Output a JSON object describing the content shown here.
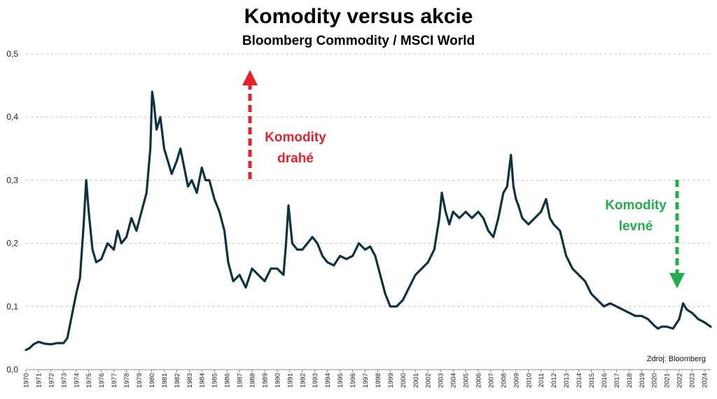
{
  "chart_data": {
    "type": "line",
    "title": "Komodity versus akcie",
    "subtitle": "Bloomberg Commodity / MSCI World",
    "xlabel": "",
    "ylabel": "",
    "ylim": [
      0,
      0.5
    ],
    "yticks": [
      "0,0",
      "0,1",
      "0,2",
      "0,3",
      "0,4",
      "0,5"
    ],
    "xlim": [
      1970,
      2024.5
    ],
    "xticks": [
      "1970",
      "1971",
      "1972",
      "1973",
      "1974",
      "1975",
      "1976",
      "1977",
      "1978",
      "1979",
      "1980",
      "1981",
      "1982",
      "1983",
      "1984",
      "1985",
      "1986",
      "1987",
      "1988",
      "1989",
      "1990",
      "1991",
      "1992",
      "1993",
      "1994",
      "1995",
      "1996",
      "1997",
      "1998",
      "1999",
      "2000",
      "2001",
      "2002",
      "2003",
      "2004",
      "2005",
      "2006",
      "2007",
      "2008",
      "2009",
      "2010",
      "2011",
      "2012",
      "2013",
      "2014",
      "2015",
      "2016",
      "2017",
      "2018",
      "2019",
      "2020",
      "2021",
      "2022",
      "2023",
      "2024"
    ],
    "grid": "horizontal dashed",
    "series": [
      {
        "color": "#0d3340",
        "x": [
          1970.0,
          1970.3,
          1970.6,
          1971.0,
          1971.5,
          1972.0,
          1972.5,
          1973.0,
          1973.3,
          1973.6,
          1974.0,
          1974.3,
          1974.6,
          1974.8,
          1975.0,
          1975.3,
          1975.6,
          1976.0,
          1976.5,
          1977.0,
          1977.3,
          1977.6,
          1978.0,
          1978.4,
          1978.8,
          1979.2,
          1979.6,
          1979.9,
          1980.05,
          1980.2,
          1980.4,
          1980.7,
          1981.0,
          1981.3,
          1981.6,
          1982.0,
          1982.3,
          1982.6,
          1982.9,
          1983.2,
          1983.6,
          1984.0,
          1984.3,
          1984.6,
          1985.0,
          1985.4,
          1985.8,
          1986.1,
          1986.5,
          1987.0,
          1987.5,
          1988.0,
          1988.5,
          1989.0,
          1989.5,
          1990.0,
          1990.5,
          1990.7,
          1990.9,
          1991.2,
          1991.6,
          1992.0,
          1992.4,
          1992.8,
          1993.2,
          1993.6,
          1994.0,
          1994.5,
          1995.0,
          1995.5,
          1996.0,
          1996.5,
          1997.0,
          1997.4,
          1997.8,
          1998.2,
          1998.6,
          1999.0,
          1999.5,
          2000.0,
          2000.5,
          2001.0,
          2001.5,
          2002.0,
          2002.5,
          2002.9,
          2003.1,
          2003.4,
          2003.7,
          2004.0,
          2004.5,
          2005.0,
          2005.5,
          2006.0,
          2006.4,
          2006.8,
          2007.2,
          2007.6,
          2008.0,
          2008.3,
          2008.6,
          2008.8,
          2009.0,
          2009.2,
          2009.5,
          2010.0,
          2010.5,
          2011.0,
          2011.4,
          2011.7,
          2012.0,
          2012.5,
          2013.0,
          2013.5,
          2014.0,
          2014.5,
          2015.0,
          2015.5,
          2016.0,
          2016.5,
          2017.0,
          2017.5,
          2018.0,
          2018.5,
          2019.0,
          2019.5,
          2020.0,
          2020.3,
          2020.6,
          2021.0,
          2021.5,
          2022.0,
          2022.3,
          2022.6,
          2023.0,
          2023.5,
          2024.0,
          2024.5
        ],
        "values": [
          0.031,
          0.034,
          0.04,
          0.044,
          0.041,
          0.04,
          0.042,
          0.042,
          0.05,
          0.08,
          0.12,
          0.145,
          0.23,
          0.3,
          0.25,
          0.19,
          0.17,
          0.175,
          0.2,
          0.19,
          0.22,
          0.2,
          0.21,
          0.24,
          0.22,
          0.25,
          0.28,
          0.35,
          0.44,
          0.42,
          0.38,
          0.4,
          0.35,
          0.33,
          0.31,
          0.33,
          0.35,
          0.32,
          0.29,
          0.3,
          0.28,
          0.32,
          0.3,
          0.3,
          0.27,
          0.25,
          0.22,
          0.17,
          0.14,
          0.15,
          0.13,
          0.16,
          0.15,
          0.14,
          0.16,
          0.16,
          0.15,
          0.2,
          0.26,
          0.2,
          0.19,
          0.19,
          0.2,
          0.21,
          0.2,
          0.18,
          0.17,
          0.165,
          0.18,
          0.175,
          0.18,
          0.2,
          0.19,
          0.195,
          0.18,
          0.15,
          0.12,
          0.1,
          0.1,
          0.11,
          0.13,
          0.15,
          0.16,
          0.17,
          0.19,
          0.24,
          0.28,
          0.25,
          0.23,
          0.25,
          0.24,
          0.25,
          0.24,
          0.25,
          0.24,
          0.22,
          0.21,
          0.24,
          0.28,
          0.29,
          0.34,
          0.29,
          0.27,
          0.26,
          0.24,
          0.23,
          0.24,
          0.25,
          0.27,
          0.24,
          0.23,
          0.22,
          0.18,
          0.16,
          0.15,
          0.14,
          0.12,
          0.11,
          0.1,
          0.105,
          0.1,
          0.095,
          0.09,
          0.085,
          0.085,
          0.08,
          0.07,
          0.065,
          0.068,
          0.068,
          0.065,
          0.08,
          0.105,
          0.095,
          0.09,
          0.08,
          0.075,
          0.068
        ]
      }
    ],
    "annotations": [
      {
        "lines": [
          "Komodity",
          "drahé"
        ],
        "color": "#e8202a",
        "arrow": "up"
      },
      {
        "lines": [
          "Komodity",
          "levné"
        ],
        "color": "#1fae4b",
        "arrow": "down"
      }
    ],
    "source": "Zdroj: Bloomberg"
  }
}
